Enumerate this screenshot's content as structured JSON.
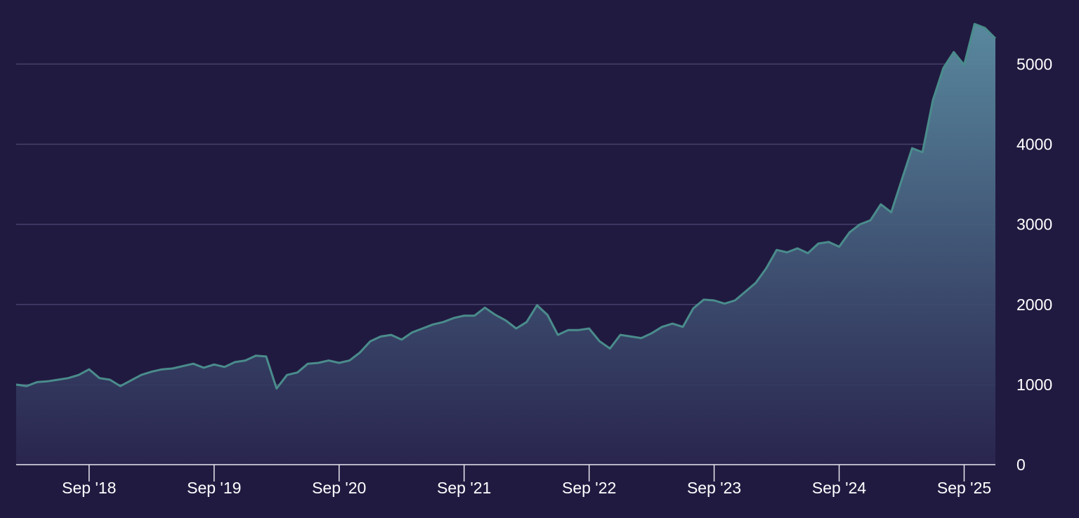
{
  "chart_data": {
    "type": "area",
    "x": [
      "2018-02",
      "2018-03",
      "2018-04",
      "2018-05",
      "2018-06",
      "2018-07",
      "2018-08",
      "2018-09",
      "2018-10",
      "2018-11",
      "2018-12",
      "2019-01",
      "2019-02",
      "2019-03",
      "2019-04",
      "2019-05",
      "2019-06",
      "2019-07",
      "2019-08",
      "2019-09",
      "2019-10",
      "2019-11",
      "2019-12",
      "2020-01",
      "2020-02",
      "2020-03",
      "2020-04",
      "2020-05",
      "2020-06",
      "2020-07",
      "2020-08",
      "2020-09",
      "2020-10",
      "2020-11",
      "2020-12",
      "2021-01",
      "2021-02",
      "2021-03",
      "2021-04",
      "2021-05",
      "2021-06",
      "2021-07",
      "2021-08",
      "2021-09",
      "2021-10",
      "2021-11",
      "2021-12",
      "2022-01",
      "2022-02",
      "2022-03",
      "2022-04",
      "2022-05",
      "2022-06",
      "2022-07",
      "2022-08",
      "2022-09",
      "2022-10",
      "2022-11",
      "2022-12",
      "2023-01",
      "2023-02",
      "2023-03",
      "2023-04",
      "2023-05",
      "2023-06",
      "2023-07",
      "2023-08",
      "2023-09",
      "2023-10",
      "2023-11",
      "2023-12",
      "2024-01",
      "2024-02",
      "2024-03",
      "2024-04",
      "2024-05",
      "2024-06",
      "2024-07",
      "2024-08",
      "2024-09",
      "2024-10",
      "2024-11",
      "2024-12",
      "2025-01",
      "2025-02",
      "2025-03",
      "2025-04",
      "2025-05",
      "2025-06",
      "2025-07",
      "2025-08",
      "2025-09",
      "2025-10",
      "2025-11",
      "2025-12"
    ],
    "series": [
      {
        "color": "#4a8c8c",
        "values": [
          1000,
          980,
          1030,
          1040,
          1060,
          1080,
          1120,
          1190,
          1080,
          1060,
          980,
          1050,
          1120,
          1160,
          1190,
          1200,
          1230,
          1260,
          1210,
          1250,
          1220,
          1280,
          1300,
          1360,
          1350,
          950,
          1120,
          1150,
          1260,
          1270,
          1300,
          1270,
          1300,
          1400,
          1540,
          1600,
          1620,
          1560,
          1650,
          1700,
          1750,
          1780,
          1830,
          1860,
          1860,
          1960,
          1870,
          1800,
          1700,
          1780,
          1990,
          1870,
          1620,
          1680,
          1680,
          1700,
          1540,
          1450,
          1620,
          1600,
          1580,
          1640,
          1720,
          1760,
          1720,
          1950,
          2060,
          2050,
          2010,
          2050,
          2160,
          2270,
          2450,
          2680,
          2650,
          2700,
          2640,
          2760,
          2780,
          2720,
          2900,
          3000,
          3050,
          3250,
          3150,
          3550,
          3950,
          3900,
          4550,
          4950,
          5150,
          4990,
          5500,
          5450,
          5320
        ]
      }
    ],
    "xlim": [
      "2018-02",
      "2025-12"
    ],
    "xticks": [
      {
        "value": "2018-09",
        "label": "Sep '18"
      },
      {
        "value": "2019-09",
        "label": "Sep '19"
      },
      {
        "value": "2020-09",
        "label": "Sep '20"
      },
      {
        "value": "2021-09",
        "label": "Sep '21"
      },
      {
        "value": "2022-09",
        "label": "Sep '22"
      },
      {
        "value": "2023-09",
        "label": "Sep '23"
      },
      {
        "value": "2024-09",
        "label": "Sep '24"
      },
      {
        "value": "2025-09",
        "label": "Sep '25"
      }
    ],
    "ylim": [
      0,
      5800
    ],
    "yticks": [
      0,
      1000,
      2000,
      3000,
      4000,
      5000
    ],
    "grid": true
  }
}
